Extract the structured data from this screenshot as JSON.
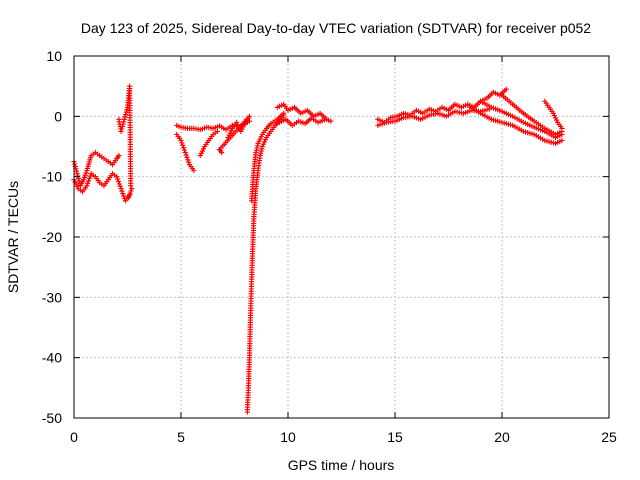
{
  "chart_data": {
    "type": "scatter",
    "title": "Day 123 of 2025, Sidereal Day-to-day VTEC variation (SDTVAR) for receiver p052",
    "xlabel": "GPS time / hours",
    "ylabel": "SDTVAR / TECUs",
    "xlim": [
      0,
      25
    ],
    "ylim": [
      -50,
      10
    ],
    "xticks": [
      0,
      5,
      10,
      15,
      20,
      25
    ],
    "yticks": [
      10,
      0,
      -10,
      -20,
      -30,
      -40,
      -50
    ],
    "grid": true,
    "marker": "plus",
    "color": "#ff0000",
    "segments": [
      {
        "name": "early cluster",
        "x": [
          0.0,
          0.15,
          0.3,
          0.45,
          0.6,
          0.8,
          1.0,
          1.2,
          1.4,
          1.6,
          1.8,
          2.0,
          2.1
        ],
        "y": [
          -7.5,
          -9.5,
          -11.5,
          -10.5,
          -9.0,
          -6.5,
          -6.0,
          -6.5,
          -7.0,
          -7.5,
          -8.0,
          -7.0,
          -6.5
        ]
      },
      {
        "name": "early cluster lower band",
        "x": [
          0.0,
          0.2,
          0.4,
          0.6,
          0.8,
          1.0,
          1.2,
          1.4,
          1.6,
          1.8,
          2.0,
          2.2,
          2.4,
          2.6
        ],
        "y": [
          -10.5,
          -12.0,
          -12.5,
          -11.5,
          -9.5,
          -10.0,
          -11.0,
          -11.5,
          -10.5,
          -9.5,
          -10.0,
          -12.0,
          -14.0,
          -13.0
        ]
      },
      {
        "name": "early spikes",
        "x": [
          2.1,
          2.2,
          2.5,
          2.6,
          2.65,
          2.7,
          2.55
        ],
        "y": [
          -0.5,
          -2.5,
          1.5,
          5.0,
          -11.5,
          -12.0,
          -13.5
        ]
      },
      {
        "name": "mid band flat",
        "x": [
          4.8,
          5.0,
          5.3,
          5.6,
          5.9,
          6.2,
          6.5,
          6.8,
          7.1,
          7.4,
          7.7,
          8.0,
          8.2
        ],
        "y": [
          -1.5,
          -1.8,
          -2.0,
          -2.0,
          -2.2,
          -1.8,
          -2.0,
          -1.6,
          -2.2,
          -1.5,
          -1.8,
          -1.2,
          -0.8
        ]
      },
      {
        "name": "mid band dip",
        "x": [
          4.8,
          5.0,
          5.2,
          5.4,
          5.6
        ],
        "y": [
          -3.0,
          -4.0,
          -6.0,
          -8.0,
          -9.0
        ]
      },
      {
        "name": "mid band rise",
        "x": [
          5.9,
          6.1,
          6.3,
          6.5,
          6.7
        ],
        "y": [
          -6.5,
          -5.0,
          -4.0,
          -3.0,
          -2.5
        ]
      },
      {
        "name": "mid band wiggle",
        "x": [
          7.2,
          7.4,
          7.6,
          7.8,
          8.0,
          8.2,
          6.8,
          6.9
        ],
        "y": [
          -3.5,
          -2.0,
          -1.0,
          -2.5,
          -1.0,
          0.0,
          -5.5,
          -6.0
        ]
      },
      {
        "name": "deep recovery",
        "x": [
          8.1,
          8.15,
          8.2,
          8.25,
          8.3,
          8.35,
          8.4,
          8.5,
          8.6,
          8.7,
          8.8,
          9.0,
          9.2,
          9.4,
          9.6,
          9.8
        ],
        "y": [
          -49.0,
          -45.0,
          -40.0,
          -33.0,
          -27.0,
          -22.0,
          -17.0,
          -12.0,
          -9.0,
          -6.5,
          -5.0,
          -3.5,
          -2.5,
          -1.5,
          -0.8,
          0.2
        ]
      },
      {
        "name": "recovery companion",
        "x": [
          8.3,
          8.4,
          8.5,
          8.6,
          8.8,
          9.0,
          9.2,
          9.5,
          9.8
        ],
        "y": [
          -14.0,
          -9.0,
          -6.0,
          -4.5,
          -3.0,
          -2.0,
          -1.2,
          -0.5,
          0.5
        ]
      },
      {
        "name": "post recovery band",
        "x": [
          9.5,
          9.8,
          10.0,
          10.3,
          10.6,
          10.9,
          11.2,
          11.5,
          11.8,
          12.0
        ],
        "y": [
          1.5,
          2.0,
          1.0,
          1.5,
          0.5,
          1.0,
          0.0,
          0.5,
          -0.5,
          -0.8
        ]
      },
      {
        "name": "post recovery low",
        "x": [
          9.6,
          9.9,
          10.2,
          10.5,
          10.8,
          11.1,
          11.4,
          11.7
        ],
        "y": [
          -1.0,
          -0.5,
          -1.5,
          -0.8,
          -1.2,
          -0.3,
          -1.0,
          -0.6
        ]
      },
      {
        "name": "late band",
        "x": [
          14.2,
          14.5,
          14.8,
          15.1,
          15.4,
          15.7,
          16.0,
          16.3,
          16.6,
          16.9,
          17.2,
          17.5,
          17.8,
          18.1,
          18.4,
          18.7,
          19.0,
          19.3,
          19.6,
          19.9,
          20.2
        ],
        "y": [
          -0.5,
          -1.0,
          -0.2,
          0.0,
          0.5,
          0.2,
          1.0,
          0.5,
          1.2,
          0.8,
          1.5,
          1.0,
          2.0,
          1.5,
          2.0,
          1.5,
          2.5,
          3.0,
          4.0,
          3.5,
          4.5
        ]
      },
      {
        "name": "late band lower",
        "x": [
          14.2,
          14.6,
          15.0,
          15.4,
          15.8,
          16.2,
          16.6,
          17.0,
          17.4,
          17.8,
          18.2,
          18.6,
          19.0,
          19.4
        ],
        "y": [
          -1.5,
          -1.0,
          -0.8,
          -0.2,
          0.0,
          -0.5,
          0.2,
          0.5,
          0.0,
          0.8,
          0.5,
          1.0,
          0.8,
          1.2
        ]
      },
      {
        "name": "late decline A",
        "x": [
          18.5,
          19.0,
          19.5,
          20.0,
          20.5,
          21.0,
          21.5,
          22.0,
          22.5,
          22.8
        ],
        "y": [
          1.5,
          0.5,
          -0.5,
          -1.0,
          -1.5,
          -2.5,
          -3.0,
          -4.0,
          -4.5,
          -4.0
        ]
      },
      {
        "name": "late decline B",
        "x": [
          19.0,
          19.5,
          20.0,
          20.5,
          21.0,
          21.5,
          22.0,
          22.5,
          22.8
        ],
        "y": [
          2.5,
          1.5,
          0.8,
          0.0,
          -1.0,
          -1.8,
          -2.5,
          -3.5,
          -3.0
        ]
      },
      {
        "name": "late decline C",
        "x": [
          20.0,
          20.5,
          21.0,
          21.5,
          22.0,
          22.5,
          22.8
        ],
        "y": [
          3.5,
          2.0,
          0.5,
          -0.8,
          -2.0,
          -3.0,
          -2.5
        ]
      },
      {
        "name": "late tail",
        "x": [
          22.0,
          22.2,
          22.4,
          22.6,
          22.8
        ],
        "y": [
          2.5,
          1.5,
          0.5,
          -1.0,
          -2.0
        ]
      }
    ]
  }
}
